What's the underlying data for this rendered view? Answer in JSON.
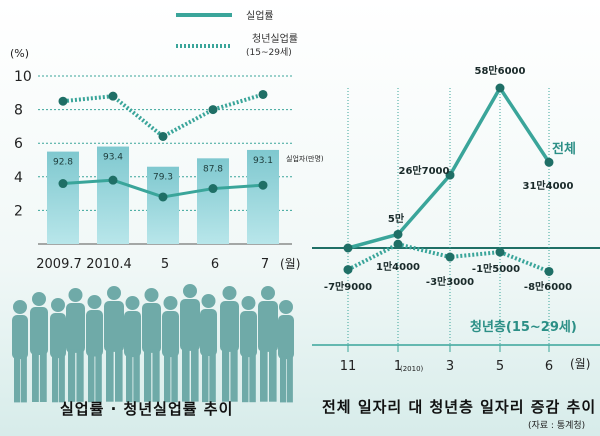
{
  "legend": {
    "unemployment": "실업률",
    "youth_unemployment": "청년실업률",
    "youth_unemployment_range": "(15~29세)"
  },
  "captions": {
    "left": "실업률 · 청년실업률 추이",
    "right": "전체 일자리 대 청년층 일자리 증감 추이",
    "source": "(자료 : 통계청)"
  },
  "colors": {
    "teal": "#3aa59a",
    "dark_teal": "#1f6f66",
    "bar": "#8fd3d8",
    "silhouette": "#6faaa8"
  },
  "chart_data": [
    {
      "type": "bar+line",
      "y_unit_label": "(%)",
      "ylim": [
        0,
        10
      ],
      "yticks": [
        2,
        4,
        6,
        8,
        10
      ],
      "categories": [
        "2009.7",
        "2010.4",
        "5",
        "6",
        "7"
      ],
      "x_unit_label": "(월)",
      "bars": {
        "name": "실업자(만명)",
        "values": [
          92.8,
          93.4,
          79.3,
          87.8,
          93.1
        ],
        "labels": [
          "92.8",
          "93.4",
          "79.3",
          "87.8",
          "93.1"
        ],
        "heights": [
          5.5,
          5.8,
          4.6,
          5.1,
          5.6
        ]
      },
      "series": [
        {
          "name": "실업률",
          "values": [
            3.6,
            3.8,
            2.8,
            3.3,
            3.5
          ]
        },
        {
          "name": "청년실업률",
          "values": [
            8.5,
            8.8,
            6.4,
            8.0,
            8.9
          ]
        }
      ]
    },
    {
      "type": "line",
      "x": [
        "11",
        "1",
        "3",
        "5",
        "6"
      ],
      "x_sub_label": "(2010)",
      "x_unit_label": "(월)",
      "zero_baseline": 0,
      "series": [
        {
          "name": "전체",
          "values": [
            0,
            50000,
            267000,
            586000,
            314000
          ],
          "labels": [
            "",
            "5만",
            "26만7000",
            "58만6000",
            "31만4000"
          ]
        },
        {
          "name": "청년층(15~29세)",
          "values": [
            -79000,
            14000,
            -33000,
            -15000,
            -86000
          ],
          "labels": [
            "-7만9000",
            "1만4000",
            "-3만3000",
            "-1만5000",
            "-8만6000"
          ]
        }
      ]
    }
  ]
}
